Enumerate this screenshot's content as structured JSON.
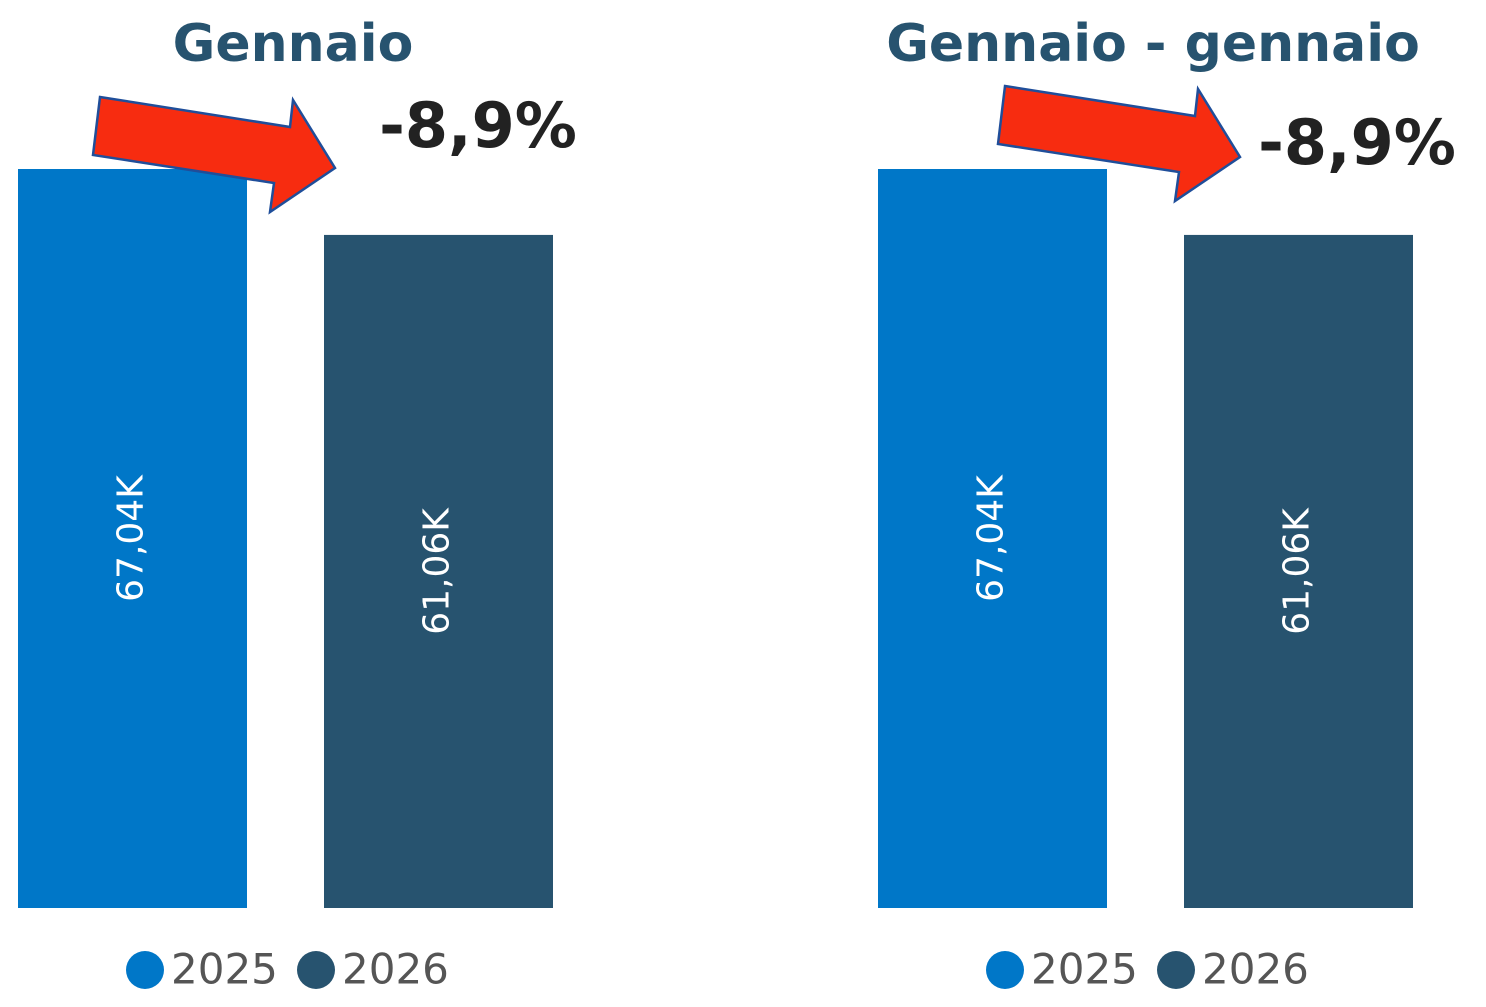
{
  "chart_data": [
    {
      "type": "bar",
      "title": "Gennaio",
      "annotation": "-8,9%",
      "series": [
        {
          "name": "2025",
          "color": "#0077c8",
          "values": [
            67040
          ],
          "value_labels": [
            "67,04K"
          ]
        },
        {
          "name": "2026",
          "color": "#27536f",
          "values": [
            61060
          ],
          "value_labels": [
            "61,06K"
          ]
        }
      ],
      "ylim": [
        0,
        70000
      ]
    },
    {
      "type": "bar",
      "title": "Gennaio - gennaio",
      "annotation": "-8,9%",
      "series": [
        {
          "name": "2025",
          "color": "#0077c8",
          "values": [
            67040
          ],
          "value_labels": [
            "67,04K"
          ]
        },
        {
          "name": "2026",
          "color": "#27536f",
          "values": [
            61060
          ],
          "value_labels": [
            "61,06K"
          ]
        }
      ],
      "ylim": [
        0,
        70000
      ]
    }
  ]
}
